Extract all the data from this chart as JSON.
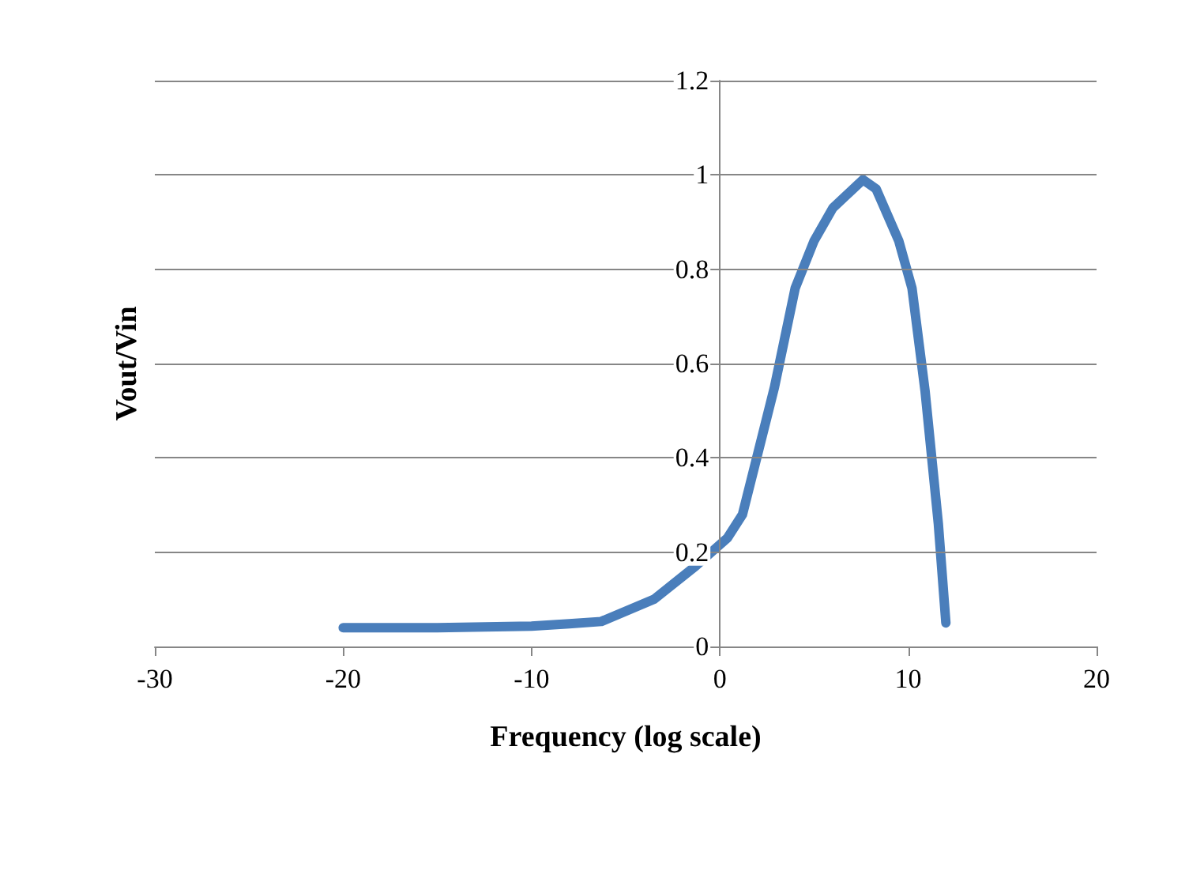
{
  "chart_data": {
    "type": "line",
    "xlabel": "Frequency (log scale)",
    "ylabel": "Vout/Vin",
    "x": [
      -20,
      -15,
      -10,
      -8,
      -6.3,
      -3.5,
      -1.3,
      0.4,
      1.2,
      2.9,
      4.0,
      5.0,
      6.0,
      7.6,
      8.3,
      9.5,
      10.2,
      10.9,
      11.6,
      12.0
    ],
    "series": [
      {
        "color": "#4a7ebb",
        "values": [
          0.04,
          0.04,
          0.043,
          0.048,
          0.053,
          0.1,
          0.17,
          0.23,
          0.28,
          0.55,
          0.76,
          0.86,
          0.93,
          0.99,
          0.97,
          0.86,
          0.76,
          0.54,
          0.26,
          0.05
        ]
      }
    ],
    "xlim": [
      -30,
      20
    ],
    "xticks": [
      -30,
      -20,
      -10,
      0,
      10,
      20
    ],
    "ylim": [
      0,
      1.2
    ],
    "yticks": [
      0,
      0.2,
      0.4,
      0.6,
      0.8,
      1,
      1.2
    ],
    "grid": "y",
    "marker": "none",
    "line_style": "solid"
  }
}
